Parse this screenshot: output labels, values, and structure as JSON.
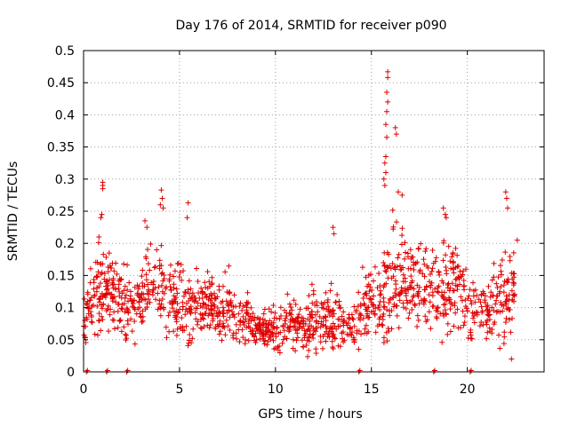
{
  "chart_data": {
    "type": "scatter",
    "title": "Day 176 of 2014, SRMTID for receiver p090",
    "xlabel": "GPS time / hours",
    "ylabel": "SRMTID / TECUs",
    "xlim": [
      0,
      24
    ],
    "ylim": [
      0,
      0.5
    ],
    "xticks": [
      0,
      5,
      10,
      15,
      20
    ],
    "xtick_labels": [
      "0",
      "5",
      "10",
      "15",
      "20"
    ],
    "yticks": [
      0,
      0.05,
      0.1,
      0.15,
      0.2,
      0.25,
      0.3,
      0.35,
      0.4,
      0.45,
      0.5
    ],
    "ytick_labels": [
      "0",
      "0.05",
      "0.1",
      "0.15",
      "0.2",
      "0.25",
      "0.3",
      "0.35",
      "0.4",
      "0.45",
      "0.5"
    ],
    "grid": true,
    "marker": "+",
    "color": "#e00000",
    "series": [
      {
        "name": "SRMTID",
        "envelope_hours": [
          0.0,
          0.5,
          1.0,
          1.5,
          2.0,
          2.5,
          3.0,
          3.5,
          4.0,
          4.5,
          5.0,
          5.5,
          6.0,
          6.5,
          7.0,
          7.5,
          8.0,
          8.5,
          9.0,
          9.5,
          10.0,
          10.5,
          11.0,
          11.5,
          12.0,
          12.5,
          13.0,
          13.5,
          14.0,
          14.5,
          15.0,
          15.5,
          16.0,
          16.5,
          17.0,
          17.5,
          18.0,
          18.5,
          19.0,
          19.5,
          20.0,
          20.5,
          21.0,
          21.5,
          22.0,
          22.5
        ],
        "envelope_typical": [
          0.07,
          0.12,
          0.13,
          0.12,
          0.1,
          0.1,
          0.12,
          0.15,
          0.14,
          0.11,
          0.11,
          0.1,
          0.1,
          0.1,
          0.1,
          0.1,
          0.09,
          0.08,
          0.07,
          0.07,
          0.07,
          0.07,
          0.07,
          0.07,
          0.08,
          0.08,
          0.08,
          0.08,
          0.07,
          0.1,
          0.11,
          0.11,
          0.15,
          0.15,
          0.14,
          0.14,
          0.13,
          0.12,
          0.13,
          0.14,
          0.1,
          0.1,
          0.09,
          0.11,
          0.12,
          0.13
        ],
        "envelope_spread": [
          0.03,
          0.07,
          0.06,
          0.05,
          0.05,
          0.05,
          0.06,
          0.07,
          0.08,
          0.05,
          0.06,
          0.06,
          0.05,
          0.05,
          0.05,
          0.05,
          0.05,
          0.04,
          0.03,
          0.03,
          0.04,
          0.04,
          0.04,
          0.04,
          0.05,
          0.04,
          0.05,
          0.04,
          0.04,
          0.05,
          0.05,
          0.06,
          0.1,
          0.09,
          0.06,
          0.06,
          0.06,
          0.06,
          0.08,
          0.08,
          0.05,
          0.05,
          0.05,
          0.07,
          0.07,
          0.06
        ],
        "peaks": [
          {
            "x": 1.0,
            "y": 0.295
          },
          {
            "x": 1.0,
            "y": 0.285
          },
          {
            "x": 1.0,
            "y": 0.29
          },
          {
            "x": 0.9,
            "y": 0.24
          },
          {
            "x": 0.95,
            "y": 0.245
          },
          {
            "x": 0.8,
            "y": 0.21
          },
          {
            "x": 4.05,
            "y": 0.283
          },
          {
            "x": 4.1,
            "y": 0.27
          },
          {
            "x": 4.0,
            "y": 0.26
          },
          {
            "x": 4.15,
            "y": 0.255
          },
          {
            "x": 5.45,
            "y": 0.263
          },
          {
            "x": 5.4,
            "y": 0.24
          },
          {
            "x": 3.2,
            "y": 0.235
          },
          {
            "x": 3.3,
            "y": 0.225
          },
          {
            "x": 13.0,
            "y": 0.225
          },
          {
            "x": 13.05,
            "y": 0.215
          },
          {
            "x": 15.85,
            "y": 0.467
          },
          {
            "x": 15.85,
            "y": 0.458
          },
          {
            "x": 15.8,
            "y": 0.435
          },
          {
            "x": 15.85,
            "y": 0.42
          },
          {
            "x": 15.8,
            "y": 0.405
          },
          {
            "x": 15.75,
            "y": 0.385
          },
          {
            "x": 15.8,
            "y": 0.365
          },
          {
            "x": 15.75,
            "y": 0.335
          },
          {
            "x": 15.7,
            "y": 0.325
          },
          {
            "x": 15.75,
            "y": 0.31
          },
          {
            "x": 15.65,
            "y": 0.3
          },
          {
            "x": 15.7,
            "y": 0.29
          },
          {
            "x": 16.25,
            "y": 0.38
          },
          {
            "x": 16.3,
            "y": 0.37
          },
          {
            "x": 16.4,
            "y": 0.28
          },
          {
            "x": 16.6,
            "y": 0.275
          },
          {
            "x": 18.75,
            "y": 0.255
          },
          {
            "x": 18.85,
            "y": 0.245
          },
          {
            "x": 18.9,
            "y": 0.24
          },
          {
            "x": 22.0,
            "y": 0.28
          },
          {
            "x": 22.05,
            "y": 0.27
          },
          {
            "x": 22.1,
            "y": 0.255
          },
          {
            "x": 22.6,
            "y": 0.205
          },
          {
            "x": 22.3,
            "y": 0.02
          }
        ],
        "zero_points_hours": [
          0.15,
          1.2,
          2.25,
          14.35,
          18.25,
          20.15
        ]
      }
    ]
  }
}
